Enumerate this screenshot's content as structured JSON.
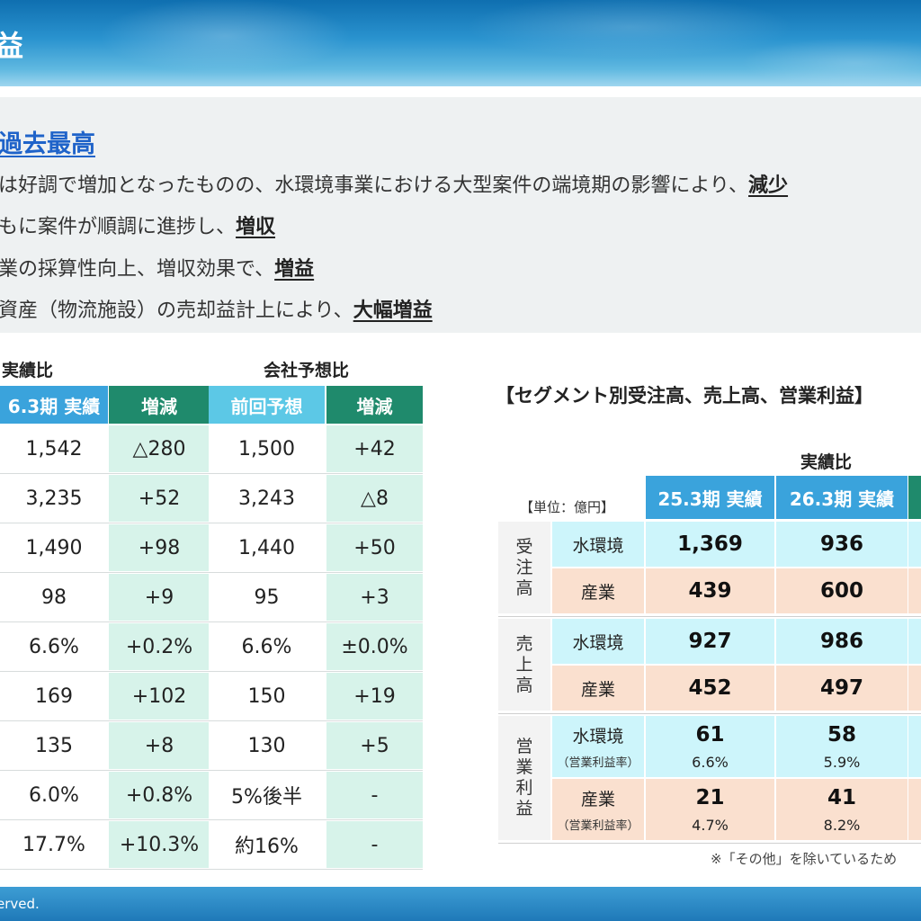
{
  "banner": {
    "title": "益"
  },
  "summary": {
    "heading": "過去最高",
    "lines": [
      {
        "text": "は好調で増加となったものの、水環境事業における大型案件の端境期の影響により、",
        "emphasis": "減少"
      },
      {
        "text": "もに案件が順調に進捗し、",
        "emphasis": "増収"
      },
      {
        "text": "業の採算性向上、増収効果で、",
        "emphasis": "増益"
      },
      {
        "text": "資産（物流施設）の売却益計上により、",
        "emphasis": "大幅増益"
      }
    ]
  },
  "left_table": {
    "group_actual": "実績比",
    "group_forecast": "会社予想比",
    "headers": [
      "6.3期 実績",
      "増減",
      "前回予想",
      "増減"
    ],
    "rows": [
      [
        "1,542",
        "△280",
        "1,500",
        "+42"
      ],
      [
        "3,235",
        "+52",
        "3,243",
        "△8"
      ],
      [
        "1,490",
        "+98",
        "1,440",
        "+50"
      ],
      [
        "98",
        "+9",
        "95",
        "+3"
      ],
      [
        "6.6%",
        "+0.2%",
        "6.6%",
        "±0.0%"
      ],
      [
        "169",
        "+102",
        "150",
        "+19"
      ],
      [
        "135",
        "+8",
        "130",
        "+5"
      ],
      [
        "6.0%",
        "+0.8%",
        "5%後半",
        "-"
      ],
      [
        "17.7%",
        "+10.3%",
        "約16%",
        "-"
      ]
    ]
  },
  "right_table": {
    "title": "【セグメント別受注高、売上高、営業利益】",
    "group": "実績比",
    "unit": "【単位：億円】",
    "headers": [
      "25.3期 実績",
      "26.3期 実績"
    ],
    "segments": [
      {
        "label": "受注高",
        "rows": [
          {
            "sub": "水環境",
            "values": [
              "1,369",
              "936"
            ]
          },
          {
            "sub": "産業",
            "values": [
              "439",
              "600"
            ]
          }
        ]
      },
      {
        "label": "売上高",
        "rows": [
          {
            "sub": "水環境",
            "values": [
              "927",
              "986"
            ]
          },
          {
            "sub": "産業",
            "values": [
              "452",
              "497"
            ]
          }
        ]
      },
      {
        "label": "営業利益",
        "rows": [
          {
            "sub": "水環境",
            "subnote": "（営業利益率）",
            "values": [
              "61",
              "58"
            ],
            "rates": [
              "6.6%",
              "5.9%"
            ]
          },
          {
            "sub": "産業",
            "subnote": "（営業利益率）",
            "values": [
              "21",
              "41"
            ],
            "rates": [
              "4.7%",
              "8.2%"
            ]
          }
        ]
      }
    ],
    "note": "※「その他」を除いているため"
  },
  "footer": {
    "copyright": "erved."
  }
}
